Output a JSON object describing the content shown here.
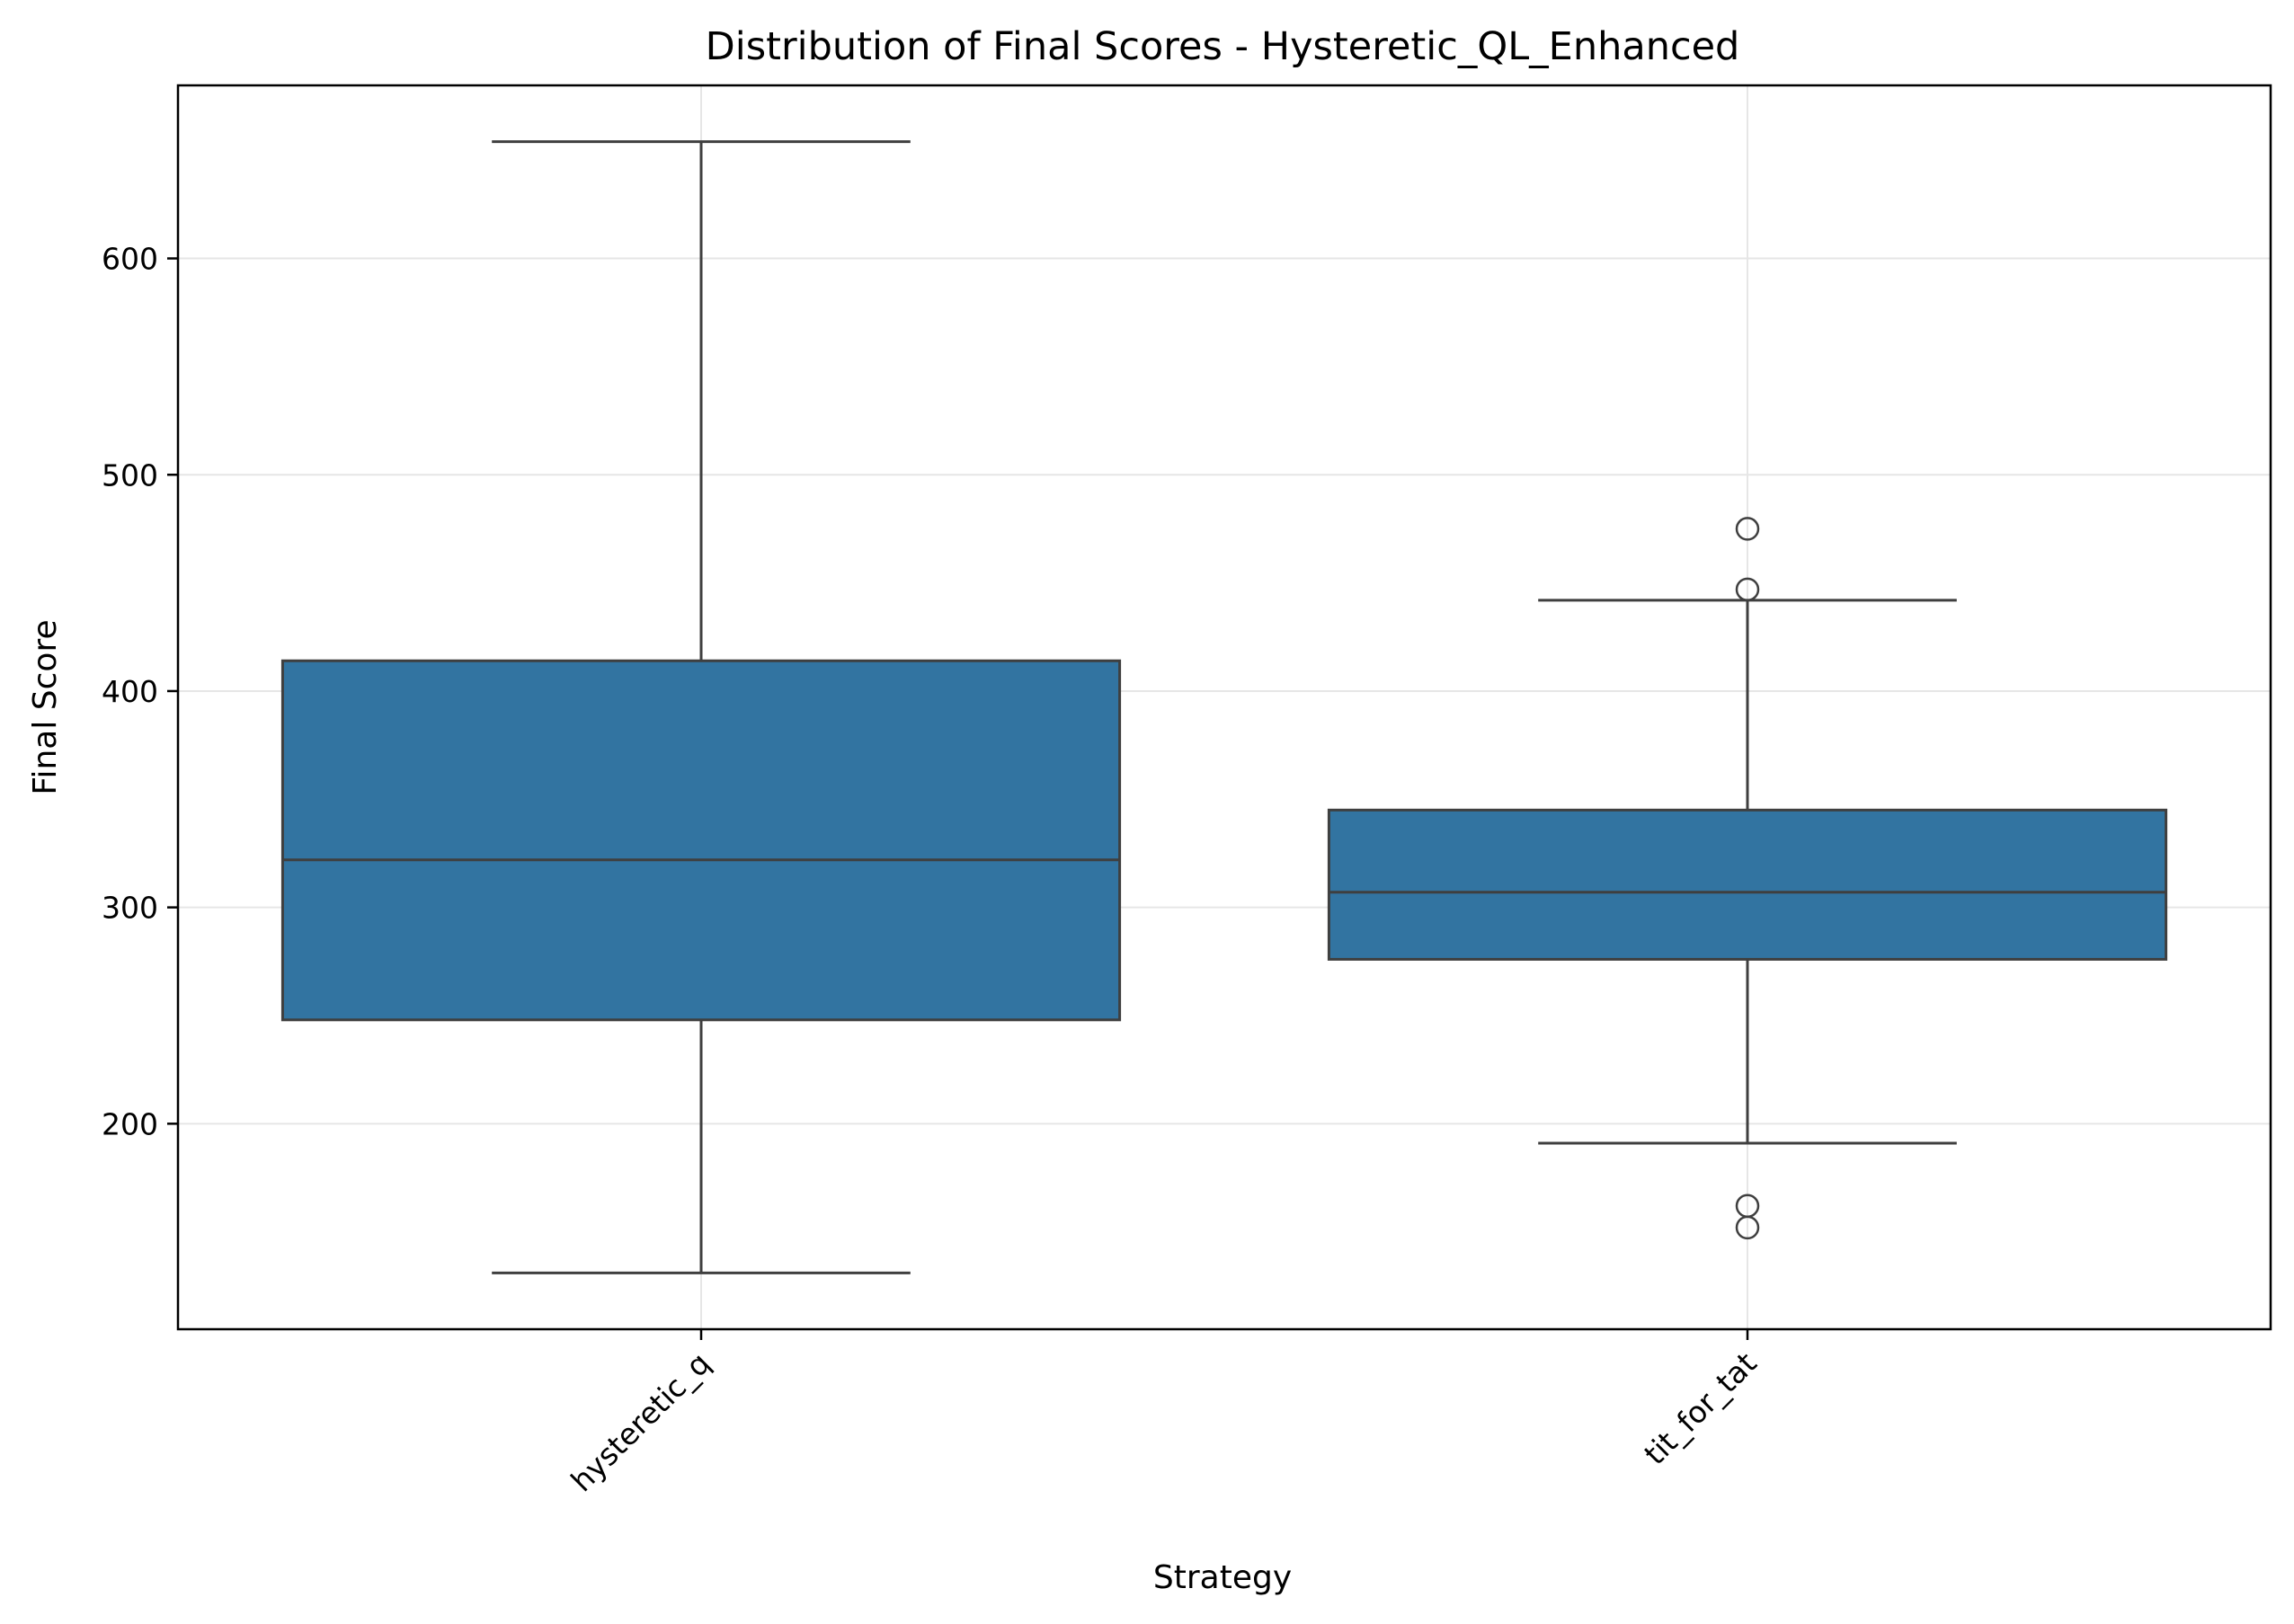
{
  "chart_data": {
    "type": "box",
    "title": "Distribution of Final Scores - Hysteretic_QL_Enhanced",
    "xlabel": "Strategy",
    "ylabel": "Final Score",
    "categories": [
      "hysteretic_q",
      "tit_for_tat"
    ],
    "boxes": [
      {
        "name": "hysteretic_q",
        "whisker_low": 131,
        "q1": 248,
        "median": 322,
        "q3": 414,
        "whisker_high": 654,
        "outliers": []
      },
      {
        "name": "tit_for_tat",
        "whisker_low": 191,
        "q1": 276,
        "median": 307,
        "q3": 345,
        "whisker_high": 442,
        "outliers": [
          475,
          447,
          162,
          152
        ]
      }
    ],
    "yticks": [
      200,
      300,
      400,
      500,
      600
    ],
    "ylim": [
      105,
      680
    ],
    "grid": true,
    "box_color": "#3274a1",
    "line_color": "#3f3f3f",
    "grid_color": "#e6e6e6"
  }
}
